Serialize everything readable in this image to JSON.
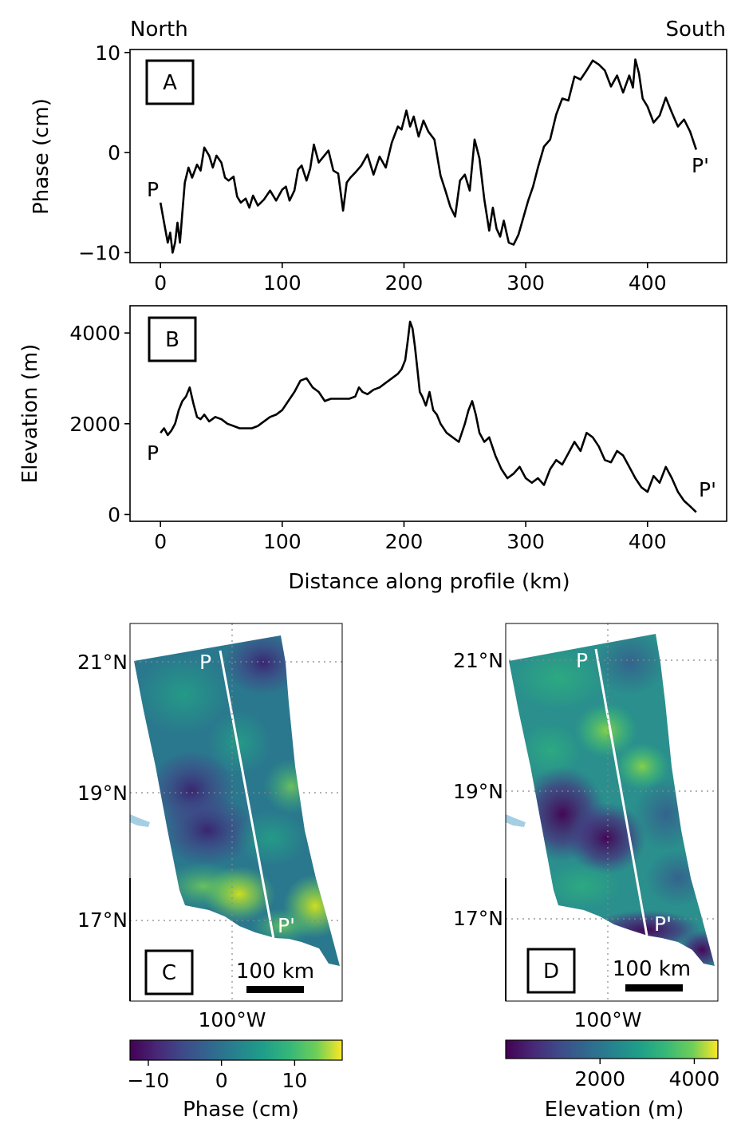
{
  "header": {
    "left": "North",
    "right": "South"
  },
  "panel_labels": {
    "a": "A",
    "b": "B",
    "c": "C",
    "d": "D"
  },
  "colors": {
    "line": "#000000",
    "profile": "#ffffff",
    "viridis_low": "#440154",
    "viridis_mid": "#21918c",
    "viridis_high": "#fde725",
    "coast_water": "#a6cee3"
  },
  "maps": {
    "lat_labels": [
      "21°N",
      "19°N",
      "17°N"
    ],
    "lon_label": "100°W",
    "scale_label": "100 km",
    "p_label": "P",
    "pprime_label": "P'"
  },
  "colorbars": {
    "phase": {
      "label": "Phase (cm)",
      "ticks": [
        "−10",
        "0",
        "10"
      ],
      "range": [
        -12.5,
        16.5
      ]
    },
    "elevation": {
      "label": "Elevation (m)",
      "ticks": [
        "2000",
        "4000"
      ],
      "range": [
        0,
        4500
      ]
    }
  },
  "chart_data": [
    {
      "type": "line",
      "panel": "A",
      "xlabel": "",
      "ylabel": "Phase (cm)",
      "xlim": [
        -25,
        465
      ],
      "ylim": [
        -11,
        10.3
      ],
      "xticks": [
        0,
        100,
        200,
        300,
        400
      ],
      "yticks": [
        -10,
        0,
        10
      ],
      "ytick_labels": [
        "−10",
        "0",
        "10"
      ],
      "point_labels": {
        "start": "P",
        "end": "P'"
      },
      "x": [
        0,
        3,
        6,
        8,
        10,
        12,
        14,
        16,
        18,
        20,
        23,
        26,
        30,
        33,
        36,
        40,
        43,
        46,
        50,
        53,
        56,
        60,
        63,
        66,
        70,
        73,
        76,
        80,
        85,
        90,
        95,
        100,
        103,
        106,
        110,
        113,
        116,
        120,
        123,
        126,
        130,
        134,
        138,
        142,
        146,
        150,
        153,
        156,
        160,
        165,
        170,
        175,
        180,
        185,
        190,
        195,
        198,
        202,
        205,
        208,
        212,
        216,
        220,
        225,
        230,
        234,
        238,
        242,
        246,
        250,
        254,
        258,
        262,
        266,
        270,
        273,
        276,
        279,
        282,
        286,
        290,
        294,
        298,
        302,
        306,
        310,
        315,
        320,
        325,
        330,
        335,
        340,
        345,
        350,
        355,
        360,
        365,
        370,
        375,
        380,
        385,
        388,
        390,
        393,
        396,
        400,
        405,
        410,
        415,
        420,
        425,
        430,
        435,
        440
      ],
      "y": [
        -5,
        -7,
        -9,
        -8,
        -10,
        -9,
        -7,
        -9,
        -6,
        -3,
        -1.5,
        -2.5,
        -1.2,
        -1.8,
        0.5,
        -0.3,
        -1.5,
        -0.3,
        -1,
        -2.5,
        -2.8,
        -2.4,
        -4.4,
        -5,
        -4.6,
        -5.5,
        -4.3,
        -5.3,
        -4.7,
        -3.8,
        -4.8,
        -3.7,
        -3.4,
        -4.8,
        -3.8,
        -1.7,
        -1.3,
        -2.8,
        -1.6,
        0.8,
        -1,
        -0.4,
        0.2,
        -1.8,
        -2.1,
        -5.8,
        -3,
        -2.5,
        -2,
        -1.3,
        -0.2,
        -2.2,
        -0.4,
        -1.5,
        1,
        2.6,
        2.3,
        4.2,
        2.6,
        3.6,
        1.6,
        3.2,
        2.1,
        1.3,
        -2.3,
        -3.8,
        -5.4,
        -6.4,
        -2.8,
        -2.2,
        -3.8,
        1.3,
        -0.6,
        -4.7,
        -7.8,
        -5.5,
        -7.6,
        -8.4,
        -6.8,
        -9,
        -9.2,
        -8.2,
        -6.5,
        -4.8,
        -3.4,
        -1.5,
        0.6,
        1.3,
        3.8,
        5.4,
        5.2,
        7.6,
        7.3,
        8.2,
        9.2,
        8.8,
        8.2,
        6.6,
        7.7,
        6,
        7.7,
        6.5,
        9.3,
        7.9,
        5.4,
        4.6,
        3,
        3.7,
        5.5,
        4,
        2.6,
        3.3,
        2.1,
        0.3
      ]
    },
    {
      "type": "line",
      "panel": "B",
      "xlabel": "Distance along profile (km)",
      "ylabel": "Elevation (m)",
      "xlim": [
        -25,
        465
      ],
      "ylim": [
        -150,
        4600
      ],
      "xticks": [
        0,
        100,
        200,
        300,
        400
      ],
      "yticks": [
        0,
        2000,
        4000
      ],
      "point_labels": {
        "start": "P",
        "end": "P'"
      },
      "x": [
        0,
        3,
        6,
        9,
        12,
        15,
        18,
        21,
        24,
        27,
        30,
        33,
        36,
        40,
        45,
        50,
        55,
        60,
        65,
        70,
        75,
        80,
        85,
        90,
        95,
        100,
        105,
        110,
        115,
        120,
        125,
        130,
        135,
        140,
        145,
        150,
        155,
        160,
        163,
        166,
        170,
        175,
        180,
        185,
        190,
        195,
        198,
        201,
        203,
        205,
        207,
        209,
        211,
        213,
        215,
        218,
        221,
        224,
        227,
        230,
        235,
        240,
        245,
        250,
        253,
        256,
        259,
        262,
        266,
        270,
        275,
        280,
        285,
        290,
        295,
        300,
        305,
        310,
        315,
        320,
        325,
        330,
        335,
        340,
        345,
        350,
        355,
        360,
        365,
        370,
        375,
        380,
        385,
        390,
        395,
        400,
        405,
        410,
        415,
        420,
        425,
        430,
        435,
        440
      ],
      "y": [
        1800,
        1900,
        1750,
        1850,
        2000,
        2300,
        2500,
        2600,
        2800,
        2450,
        2150,
        2100,
        2200,
        2050,
        2150,
        2100,
        2000,
        1950,
        1900,
        1900,
        1900,
        1950,
        2050,
        2150,
        2200,
        2300,
        2500,
        2700,
        2950,
        3000,
        2800,
        2700,
        2500,
        2550,
        2550,
        2550,
        2550,
        2600,
        2800,
        2700,
        2650,
        2750,
        2800,
        2900,
        3000,
        3100,
        3200,
        3400,
        3800,
        4250,
        4100,
        3700,
        3200,
        2700,
        2600,
        2400,
        2700,
        2300,
        2200,
        2000,
        1800,
        1700,
        1600,
        2000,
        2300,
        2500,
        2200,
        1800,
        1600,
        1700,
        1300,
        1000,
        800,
        900,
        1050,
        800,
        700,
        800,
        650,
        1000,
        1200,
        1100,
        1350,
        1600,
        1400,
        1800,
        1700,
        1500,
        1200,
        1150,
        1400,
        1300,
        1050,
        800,
        600,
        500,
        850,
        700,
        1050,
        800,
        500,
        300,
        180,
        50
      ]
    }
  ]
}
